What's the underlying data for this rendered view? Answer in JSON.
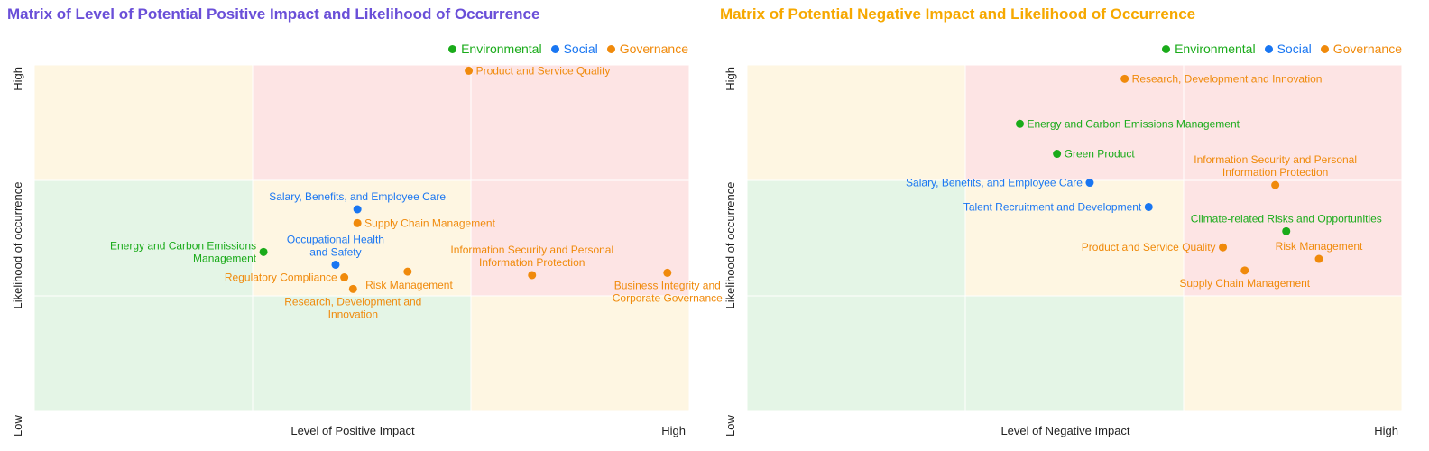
{
  "colors": {
    "Environmental": "#1aab1a",
    "Social": "#1976f2",
    "Governance": "#f08a0b",
    "cell_red": "#fde4e4",
    "cell_yellow": "#fef6e2",
    "cell_green": "#e4f5e6"
  },
  "chart_data": [
    {
      "type": "scatter",
      "title": "Matrix of Level of Potential Positive Impact and Likelihood of Occurrence",
      "title_color": "#6a4fd8",
      "xlabel": "Level of Positive Impact",
      "ylabel": "Likelihood of occurrence",
      "x_tick_labels": [
        "",
        "High"
      ],
      "y_tick_labels": [
        "Low",
        "High"
      ],
      "xlim": [
        0,
        3
      ],
      "ylim": [
        0,
        3
      ],
      "grid": [
        [
          "cell_yellow",
          "cell_red",
          "cell_red"
        ],
        [
          "cell_green",
          "cell_yellow",
          "cell_red"
        ],
        [
          "cell_green",
          "cell_green",
          "cell_yellow"
        ]
      ],
      "legend": [
        "Environmental",
        "Social",
        "Governance"
      ],
      "legend_position": "top-right",
      "points": [
        {
          "label": "Product and Service Quality",
          "category": "Governance",
          "x": 1.99,
          "y": 2.95,
          "anchor": "right"
        },
        {
          "label": "Salary, Benefits, and Employee Care",
          "category": "Social",
          "x": 1.48,
          "y": 1.75,
          "anchor": "above"
        },
        {
          "label": "Supply Chain Management",
          "category": "Governance",
          "x": 1.48,
          "y": 1.63,
          "anchor": "right"
        },
        {
          "label": "Energy and Carbon Emissions Management",
          "category": "Environmental",
          "x": 1.05,
          "y": 1.38,
          "anchor": "left"
        },
        {
          "label": "Occupational Health and Safety",
          "category": "Social",
          "x": 1.38,
          "y": 1.27,
          "anchor": "above"
        },
        {
          "label": "Regulatory Compliance",
          "category": "Governance",
          "x": 1.42,
          "y": 1.16,
          "anchor": "left"
        },
        {
          "label": "Risk Management",
          "category": "Governance",
          "x": 1.71,
          "y": 1.21,
          "anchor": "below-left"
        },
        {
          "label": "Research, Development and Innovation",
          "category": "Governance",
          "x": 1.46,
          "y": 1.06,
          "anchor": "below"
        },
        {
          "label": "Information Security and Personal Information Protection",
          "category": "Governance",
          "x": 2.28,
          "y": 1.18,
          "anchor": "above"
        },
        {
          "label": "Business Integrity and Corporate Governance",
          "category": "Governance",
          "x": 2.9,
          "y": 1.2,
          "anchor": "below"
        }
      ],
      "label_lines": {
        "Energy and Carbon Emissions Management": [
          "Energy and Carbon Emissions",
          "Management"
        ],
        "Occupational Health and Safety": [
          "Occupational Health",
          "and Safety"
        ],
        "Research, Development and Innovation": [
          "Research, Development and",
          "Innovation"
        ],
        "Information Security and Personal Information Protection": [
          "Information Security and Personal",
          "Information Protection"
        ],
        "Business Integrity and Corporate Governance": [
          "Business Integrity and",
          "Corporate Governance"
        ]
      }
    },
    {
      "type": "scatter",
      "title": "Matrix of Potential Negative Impact and Likelihood of Occurrence",
      "title_color": "#f6a800",
      "xlabel": "Level of Negative Impact",
      "ylabel": "Likelihood of occurrence",
      "x_tick_labels": [
        "",
        "High"
      ],
      "y_tick_labels": [
        "Low",
        "High"
      ],
      "xlim": [
        0,
        3
      ],
      "ylim": [
        0,
        3
      ],
      "grid": [
        [
          "cell_yellow",
          "cell_red",
          "cell_red"
        ],
        [
          "cell_green",
          "cell_yellow",
          "cell_red"
        ],
        [
          "cell_green",
          "cell_green",
          "cell_yellow"
        ]
      ],
      "legend": [
        "Environmental",
        "Social",
        "Governance"
      ],
      "legend_position": "top-right",
      "points": [
        {
          "label": "Research, Development and Innovation",
          "category": "Governance",
          "x": 1.73,
          "y": 2.88,
          "anchor": "right"
        },
        {
          "label": "Energy and Carbon Emissions Management",
          "category": "Environmental",
          "x": 1.25,
          "y": 2.49,
          "anchor": "right"
        },
        {
          "label": "Green Product",
          "category": "Environmental",
          "x": 1.42,
          "y": 2.23,
          "anchor": "right"
        },
        {
          "label": "Salary, Benefits, and Employee Care",
          "category": "Social",
          "x": 1.57,
          "y": 1.98,
          "anchor": "left"
        },
        {
          "label": "Information Security and Personal Information Protection",
          "category": "Governance",
          "x": 2.42,
          "y": 1.96,
          "anchor": "above"
        },
        {
          "label": "Talent Recruitment and Development",
          "category": "Social",
          "x": 1.84,
          "y": 1.77,
          "anchor": "left"
        },
        {
          "label": "Climate-related Risks and Opportunities",
          "category": "Environmental",
          "x": 2.47,
          "y": 1.56,
          "anchor": "above"
        },
        {
          "label": "Product and Service Quality",
          "category": "Governance",
          "x": 2.18,
          "y": 1.42,
          "anchor": "left"
        },
        {
          "label": "Risk Management",
          "category": "Governance",
          "x": 2.62,
          "y": 1.32,
          "anchor": "above"
        },
        {
          "label": "Supply Chain Management",
          "category": "Governance",
          "x": 2.28,
          "y": 1.22,
          "anchor": "below"
        }
      ],
      "label_lines": {
        "Information Security and Personal Information Protection": [
          "Information Security and Personal",
          "Information Protection"
        ]
      }
    }
  ]
}
